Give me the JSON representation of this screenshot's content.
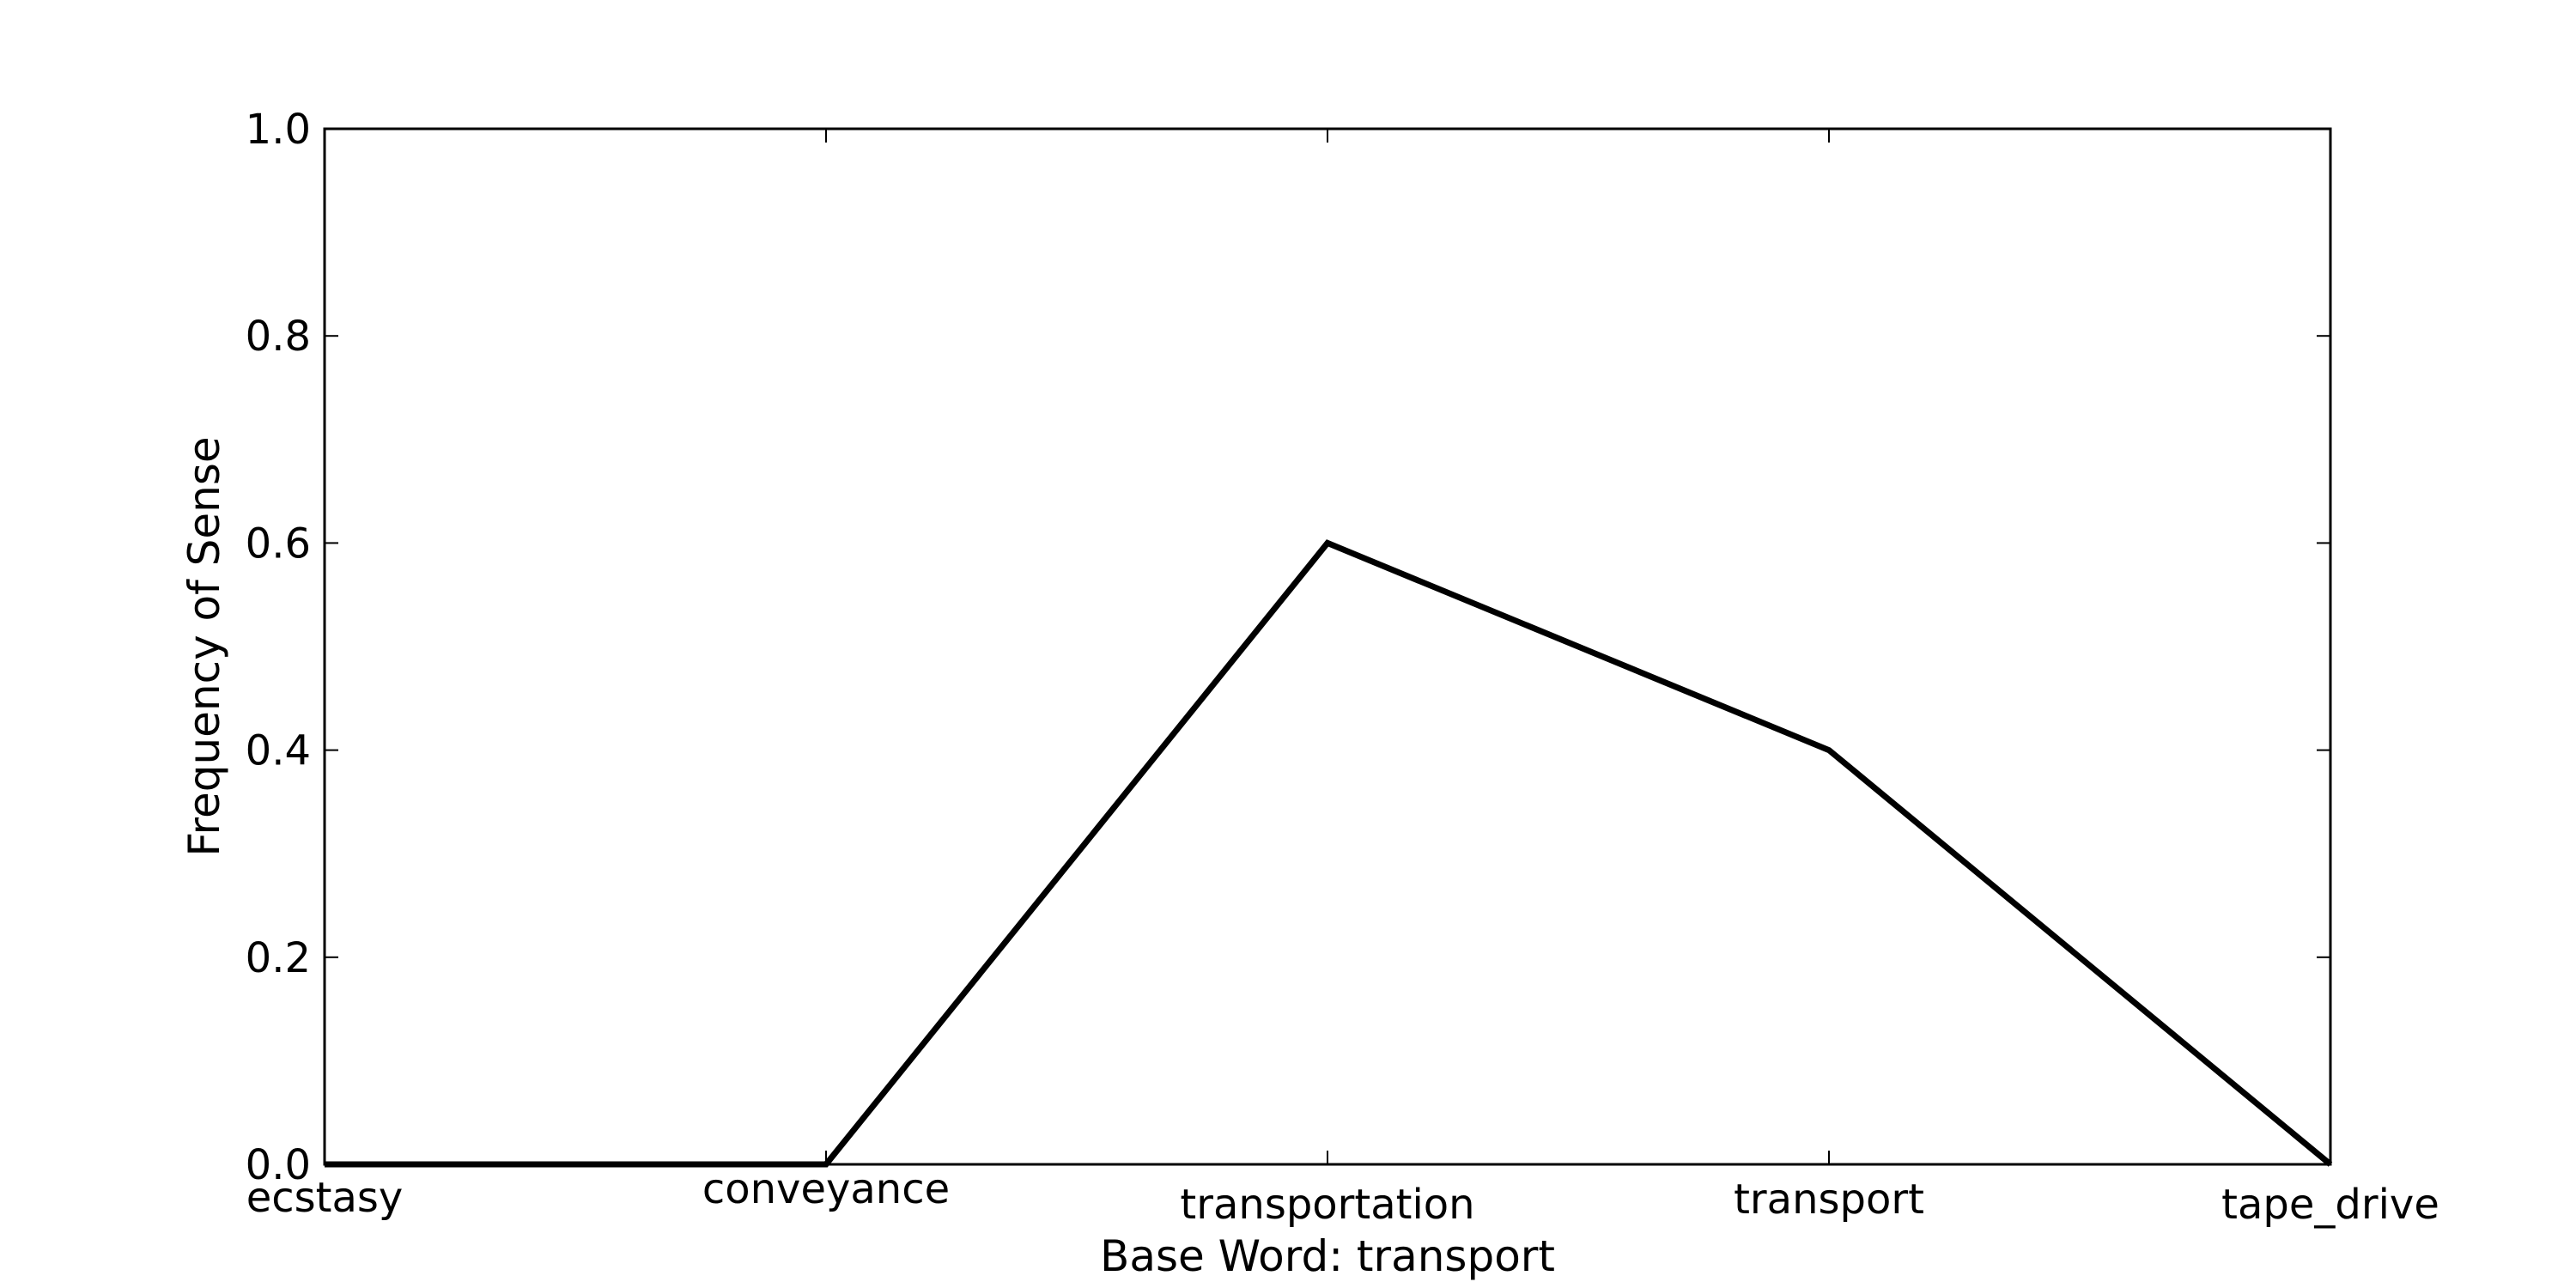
{
  "chart_data": {
    "type": "line",
    "title": "",
    "xlabel": "Base Word: transport",
    "ylabel": "Frequency of Sense",
    "categories": [
      "ecstasy",
      "conveyance",
      "transportation",
      "transport",
      "tape_drive"
    ],
    "series": [
      {
        "values": [
          0.0,
          0.0,
          0.6,
          0.4,
          0.0
        ],
        "color": "#000000"
      }
    ],
    "ylim": [
      0.0,
      1.0
    ],
    "yticks": [
      0.0,
      0.2,
      0.4,
      0.6,
      0.8,
      1.0
    ],
    "ytick_labels": [
      "0.0",
      "0.2",
      "0.4",
      "0.6",
      "0.8",
      "1.0"
    ],
    "grid": false,
    "legend": "none"
  }
}
